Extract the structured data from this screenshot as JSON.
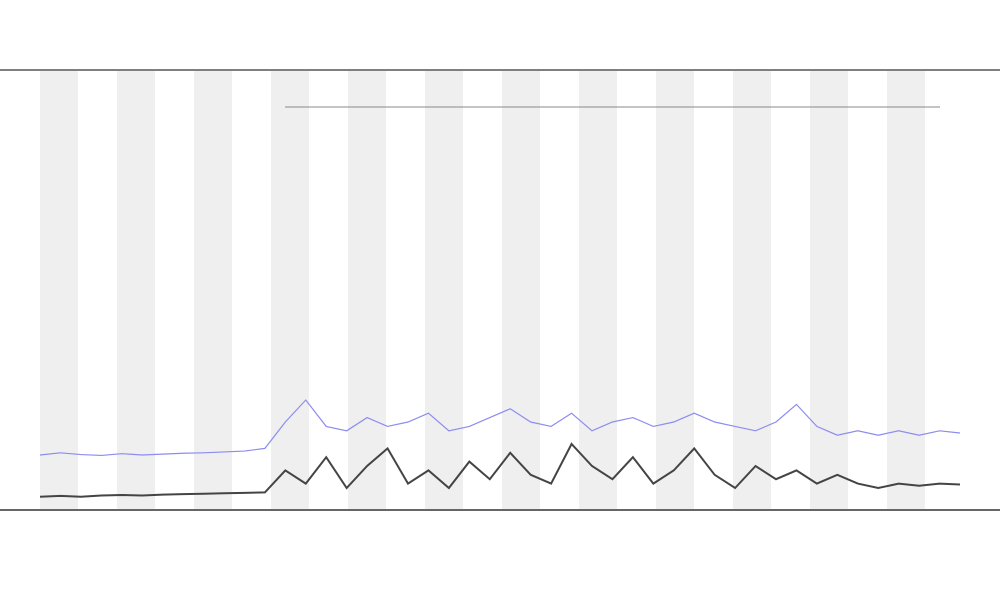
{
  "chart_data": {
    "type": "line",
    "x": [
      0,
      1,
      2,
      3,
      4,
      5,
      6,
      7,
      8,
      9,
      10,
      11,
      12,
      13,
      14,
      15,
      16,
      17,
      18,
      19,
      20,
      21,
      22,
      23,
      24,
      25,
      26,
      27,
      28,
      29,
      30,
      31,
      32,
      33,
      34,
      35,
      36,
      37,
      38,
      39,
      40,
      41,
      42,
      43,
      44,
      45
    ],
    "xlim": [
      0,
      45
    ],
    "ylim": [
      0,
      100
    ],
    "series": [
      {
        "color": "#8c8cf0",
        "values": [
          12.5,
          13,
          12.6,
          12.4,
          12.8,
          12.5,
          12.7,
          12.9,
          13,
          13.2,
          13.4,
          14,
          20,
          25,
          19,
          18,
          21,
          19,
          20,
          22,
          18,
          19,
          21,
          23,
          20,
          19,
          22,
          18,
          20,
          21,
          19,
          20,
          22,
          20,
          19,
          18,
          20,
          24,
          19,
          17,
          18,
          17,
          18,
          17,
          18,
          17.5
        ]
      },
      {
        "color": "#444444",
        "values": [
          3,
          3.2,
          3,
          3.3,
          3.4,
          3.3,
          3.5,
          3.6,
          3.7,
          3.8,
          3.9,
          4,
          9,
          6,
          12,
          5,
          10,
          14,
          6,
          9,
          5,
          11,
          7,
          13,
          8,
          6,
          15,
          10,
          7,
          12,
          6,
          9,
          14,
          8,
          5,
          10,
          7,
          9,
          6,
          8,
          6,
          5,
          6,
          5.5,
          6,
          5.8
        ]
      }
    ]
  }
}
